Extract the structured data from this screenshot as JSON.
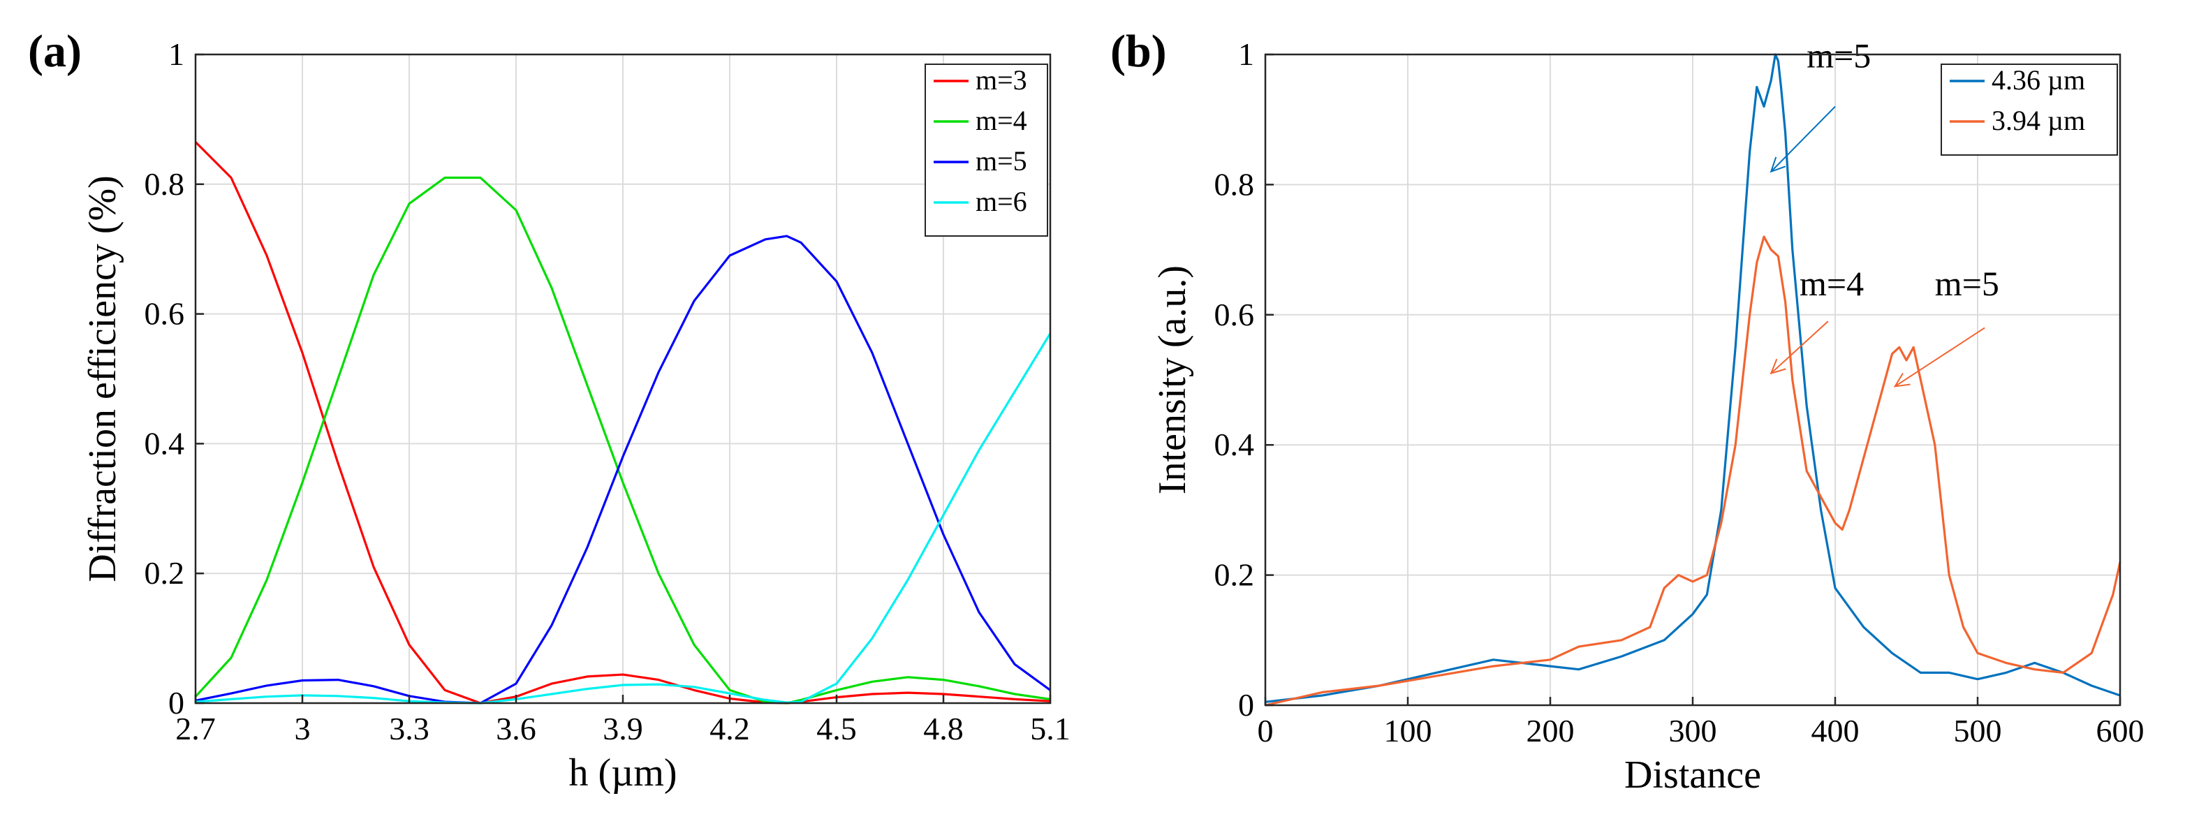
{
  "chart_data": [
    {
      "panel_label": "(a)",
      "type": "line",
      "xlabel": "h (µm)",
      "ylabel": "Diffraction efficiency (%)",
      "xlim": [
        2.7,
        5.1
      ],
      "ylim": [
        0,
        1
      ],
      "xticks": [
        2.7,
        3,
        3.3,
        3.6,
        3.9,
        4.2,
        4.5,
        4.8,
        5.1
      ],
      "xtick_labels": [
        "2.7",
        "3",
        "3.3",
        "3.6",
        "3.9",
        "4.2",
        "4.5",
        "4.8",
        "5.1"
      ],
      "yticks": [
        0,
        0.2,
        0.4,
        0.6,
        0.8,
        1
      ],
      "ytick_labels": [
        "0",
        "0.2",
        "0.4",
        "0.6",
        "0.8",
        "1"
      ],
      "grid": true,
      "legend_position": "top-right",
      "x": [
        2.7,
        2.8,
        2.9,
        3.0,
        3.1,
        3.2,
        3.3,
        3.4,
        3.5,
        3.6,
        3.7,
        3.8,
        3.9,
        4.0,
        4.1,
        4.2,
        4.3,
        4.36,
        4.4,
        4.5,
        4.6,
        4.7,
        4.8,
        4.9,
        5.0,
        5.1
      ],
      "series": [
        {
          "name": "m=3",
          "color": "#ff0000",
          "values": [
            0.865,
            0.81,
            0.69,
            0.54,
            0.37,
            0.21,
            0.09,
            0.02,
            0.0,
            0.01,
            0.03,
            0.041,
            0.044,
            0.036,
            0.02,
            0.007,
            0.001,
            0.0,
            0.002,
            0.009,
            0.014,
            0.016,
            0.014,
            0.01,
            0.006,
            0.003
          ]
        },
        {
          "name": "m=4",
          "color": "#00dd00",
          "values": [
            0.01,
            0.07,
            0.19,
            0.34,
            0.5,
            0.66,
            0.77,
            0.81,
            0.81,
            0.76,
            0.64,
            0.49,
            0.34,
            0.2,
            0.09,
            0.02,
            0.002,
            0.0,
            0.005,
            0.02,
            0.033,
            0.04,
            0.036,
            0.026,
            0.014,
            0.006
          ]
        },
        {
          "name": "m=5",
          "color": "#0000ff",
          "values": [
            0.004,
            0.015,
            0.027,
            0.035,
            0.036,
            0.026,
            0.011,
            0.002,
            0.0,
            0.03,
            0.12,
            0.24,
            0.38,
            0.51,
            0.62,
            0.69,
            0.715,
            0.72,
            0.71,
            0.65,
            0.54,
            0.4,
            0.26,
            0.14,
            0.06,
            0.02
          ]
        },
        {
          "name": "m=6",
          "color": "#00f0f0",
          "values": [
            0.002,
            0.006,
            0.01,
            0.012,
            0.011,
            0.008,
            0.003,
            0.001,
            0.0,
            0.006,
            0.014,
            0.022,
            0.028,
            0.029,
            0.025,
            0.015,
            0.005,
            0.001,
            0.002,
            0.03,
            0.1,
            0.19,
            0.29,
            0.39,
            0.48,
            0.57
          ]
        }
      ]
    },
    {
      "panel_label": "(b)",
      "type": "line",
      "xlabel": "Distance",
      "ylabel": "Intensity (a.u.)",
      "xlim": [
        0,
        600
      ],
      "ylim": [
        0,
        1
      ],
      "xticks": [
        0,
        100,
        200,
        300,
        400,
        500,
        600
      ],
      "xtick_labels": [
        "0",
        "100",
        "200",
        "300",
        "400",
        "500",
        "600"
      ],
      "yticks": [
        0,
        0.2,
        0.4,
        0.6,
        0.8,
        1
      ],
      "ytick_labels": [
        "0",
        "0.2",
        "0.4",
        "0.6",
        "0.8",
        "1"
      ],
      "grid": true,
      "legend_position": "top-right",
      "series": [
        {
          "name": "4.36 µm",
          "color": "#0072bd",
          "x": [
            0,
            40,
            80,
            120,
            160,
            180,
            200,
            220,
            250,
            280,
            300,
            310,
            320,
            330,
            340,
            345,
            350,
            355,
            358,
            360,
            362,
            365,
            370,
            380,
            390,
            400,
            410,
            420,
            440,
            460,
            480,
            500,
            520,
            540,
            560,
            580,
            600
          ],
          "y": [
            0.005,
            0.015,
            0.03,
            0.05,
            0.07,
            0.065,
            0.06,
            0.055,
            0.075,
            0.1,
            0.14,
            0.17,
            0.3,
            0.55,
            0.85,
            0.95,
            0.92,
            0.96,
            1.0,
            0.99,
            0.95,
            0.88,
            0.7,
            0.46,
            0.3,
            0.18,
            0.15,
            0.12,
            0.08,
            0.05,
            0.05,
            0.04,
            0.05,
            0.065,
            0.05,
            0.03,
            0.015
          ]
        },
        {
          "name": "3.94 µm",
          "color": "#f26430",
          "x": [
            0,
            40,
            80,
            120,
            160,
            200,
            220,
            250,
            270,
            280,
            290,
            300,
            310,
            320,
            330,
            340,
            345,
            350,
            355,
            360,
            365,
            370,
            380,
            390,
            400,
            405,
            410,
            420,
            430,
            440,
            445,
            450,
            455,
            460,
            470,
            480,
            490,
            500,
            520,
            540,
            560,
            580,
            595,
            600
          ],
          "y": [
            0.0,
            0.02,
            0.03,
            0.045,
            0.06,
            0.07,
            0.09,
            0.1,
            0.12,
            0.18,
            0.2,
            0.19,
            0.2,
            0.28,
            0.4,
            0.6,
            0.68,
            0.72,
            0.7,
            0.69,
            0.62,
            0.5,
            0.36,
            0.32,
            0.28,
            0.27,
            0.3,
            0.38,
            0.46,
            0.54,
            0.55,
            0.53,
            0.55,
            0.5,
            0.4,
            0.2,
            0.12,
            0.08,
            0.065,
            0.055,
            0.05,
            0.08,
            0.17,
            0.22
          ]
        }
      ],
      "annotations": [
        {
          "text": "m=5",
          "x": 380,
          "y": 0.98,
          "arrow_from": [
            400,
            0.92
          ],
          "arrow_to": [
            355,
            0.82
          ],
          "color": "#0072bd"
        },
        {
          "text": "m=4",
          "x": 375,
          "y": 0.63,
          "arrow_from": [
            395,
            0.59
          ],
          "arrow_to": [
            355,
            0.51
          ],
          "color": "#f26430"
        },
        {
          "text": "m=5",
          "x": 470,
          "y": 0.63,
          "arrow_from": [
            505,
            0.58
          ],
          "arrow_to": [
            442,
            0.49
          ],
          "color": "#f26430"
        }
      ]
    }
  ]
}
